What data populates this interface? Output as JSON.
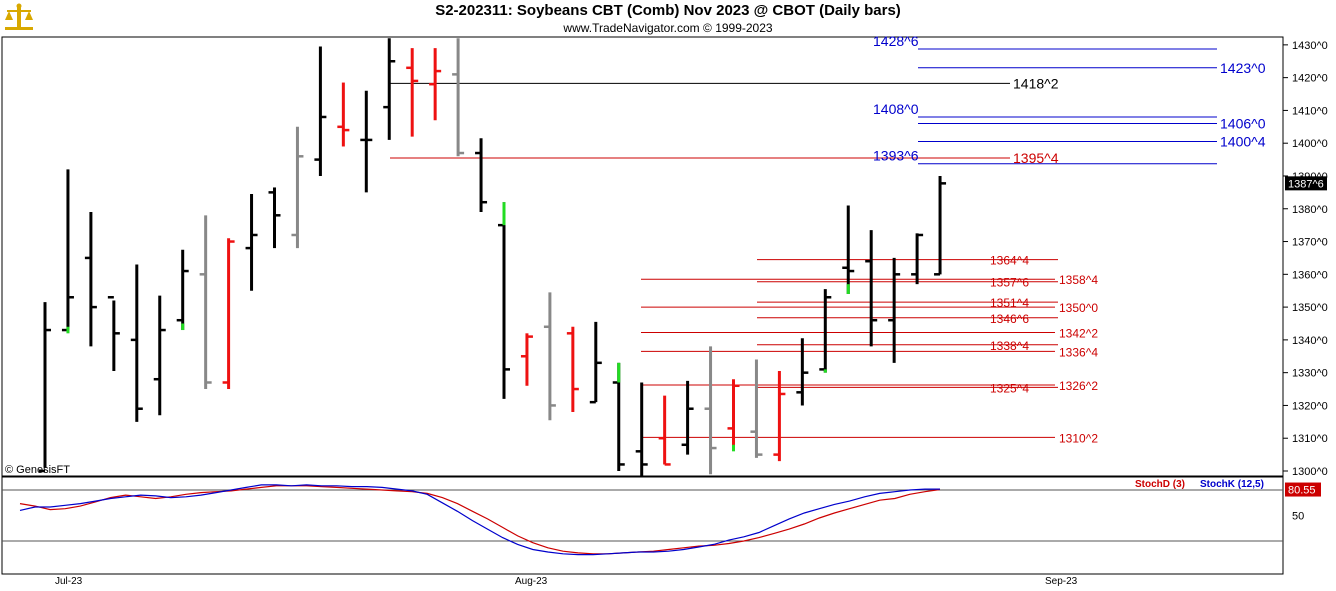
{
  "header": {
    "title": "S2-202311:  Soybeans CBT (Comb) Nov 2023 @ CBOT  (Daily bars)",
    "subtitle": "www.TradeNavigator.com © 1999-2023",
    "watermark": "© GenesisFT"
  },
  "colors": {
    "up": "#000000",
    "down": "#ee1111",
    "neutral": "#888888",
    "signal": "#22dd22",
    "blue": "#0000cc",
    "red": "#cc0000"
  },
  "chart_data": [
    {
      "type": "bar",
      "subtype": "ohlc",
      "ylim": [
        1297,
        1432
      ],
      "yticks": [
        "1300^0",
        "1310^0",
        "1320^0",
        "1330^0",
        "1340^0",
        "1350^0",
        "1360^0",
        "1370^0",
        "1380^0",
        "1390^0",
        "1400^0",
        "1410^0",
        "1420^0",
        "1430^0"
      ],
      "ytick_values": [
        1300,
        1310,
        1320,
        1330,
        1340,
        1350,
        1360,
        1370,
        1380,
        1390,
        1400,
        1410,
        1420,
        1430
      ],
      "xlabels": [
        "Jul-23",
        "Aug-23",
        "Sep-23"
      ],
      "last_price": {
        "label": "1387^6",
        "value": 1387.75
      },
      "bars": [
        {
          "h": 1351.5,
          "l": 1301,
          "o": 1300,
          "c": 1343,
          "color": "black"
        },
        {
          "h": 1392,
          "l": 1343,
          "o": 1343,
          "c": 1353,
          "color": "black"
        },
        {
          "h": 1379,
          "l": 1338,
          "o": 1365,
          "c": 1350,
          "color": "black"
        },
        {
          "h": 1352,
          "l": 1330.5,
          "o": 1353,
          "c": 1342,
          "color": "black"
        },
        {
          "h": 1363,
          "l": 1315,
          "o": 1340,
          "c": 1319,
          "color": "black"
        },
        {
          "h": 1353.5,
          "l": 1317,
          "o": 1328,
          "c": 1343,
          "color": "black"
        },
        {
          "h": 1367.5,
          "l": 1343,
          "o": 1346,
          "c": 1361,
          "color": "black"
        },
        {
          "h": 1378,
          "l": 1325,
          "o": 1360,
          "c": 1327,
          "color": "gray"
        },
        {
          "h": 1371,
          "l": 1325,
          "o": 1327,
          "c": 1370,
          "color": "red"
        },
        {
          "h": 1384.5,
          "l": 1355,
          "o": 1368,
          "c": 1372,
          "color": "black"
        },
        {
          "h": 1386.5,
          "l": 1368,
          "o": 1385,
          "c": 1378,
          "color": "black"
        },
        {
          "h": 1405,
          "l": 1368,
          "o": 1372,
          "c": 1396,
          "color": "gray"
        },
        {
          "h": 1429.5,
          "l": 1390,
          "o": 1395,
          "c": 1408,
          "color": "black"
        },
        {
          "h": 1418.5,
          "l": 1399,
          "o": 1405,
          "c": 1404,
          "color": "red"
        },
        {
          "h": 1416,
          "l": 1385,
          "o": 1401,
          "c": 1401,
          "color": "black"
        },
        {
          "h": 1432,
          "l": 1401,
          "o": 1411,
          "c": 1425,
          "color": "black"
        },
        {
          "h": 1429,
          "l": 1402,
          "o": 1423,
          "c": 1419,
          "color": "red"
        },
        {
          "h": 1429,
          "l": 1407,
          "o": 1418,
          "c": 1422,
          "color": "red"
        },
        {
          "h": 1432,
          "l": 1396,
          "o": 1421,
          "c": 1397,
          "color": "gray"
        },
        {
          "h": 1401.5,
          "l": 1379,
          "o": 1397,
          "c": 1382,
          "color": "black"
        },
        {
          "h": 1382,
          "l": 1322,
          "o": 1375,
          "c": 1331,
          "color": "black"
        },
        {
          "h": 1342,
          "l": 1326,
          "o": 1335,
          "c": 1341,
          "color": "red"
        },
        {
          "h": 1354.5,
          "l": 1315.5,
          "o": 1344,
          "c": 1320,
          "color": "gray"
        },
        {
          "h": 1344,
          "l": 1318,
          "o": 1342,
          "c": 1325,
          "color": "red"
        },
        {
          "h": 1345.5,
          "l": 1321,
          "o": 1321,
          "c": 1333,
          "color": "black"
        },
        {
          "h": 1333,
          "l": 1300,
          "o": 1327,
          "c": 1302,
          "color": "black"
        },
        {
          "h": 1327,
          "l": 1298,
          "o": 1306,
          "c": 1302,
          "color": "black"
        },
        {
          "h": 1323,
          "l": 1302,
          "o": 1310,
          "c": 1302,
          "color": "red"
        },
        {
          "h": 1327.5,
          "l": 1305,
          "o": 1308,
          "c": 1319,
          "color": "black"
        },
        {
          "h": 1338,
          "l": 1299,
          "o": 1319,
          "c": 1307,
          "color": "gray"
        },
        {
          "h": 1328,
          "l": 1307,
          "o": 1313,
          "c": 1326,
          "color": "red"
        },
        {
          "h": 1334,
          "l": 1304,
          "o": 1312,
          "c": 1305,
          "color": "gray"
        },
        {
          "h": 1330.5,
          "l": 1303,
          "o": 1305,
          "c": 1323.5,
          "color": "red"
        },
        {
          "h": 1340.5,
          "l": 1320,
          "o": 1324,
          "c": 1330,
          "color": "black"
        },
        {
          "h": 1355.5,
          "l": 1330,
          "o": 1331,
          "c": 1353,
          "color": "black"
        },
        {
          "h": 1381,
          "l": 1354,
          "o": 1362,
          "c": 1361,
          "color": "black"
        },
        {
          "h": 1373.5,
          "l": 1338,
          "o": 1364,
          "c": 1346,
          "color": "black"
        },
        {
          "h": 1365,
          "l": 1333,
          "o": 1346,
          "c": 1360,
          "color": "black"
        },
        {
          "h": 1372.5,
          "l": 1357,
          "o": 1360,
          "c": 1372,
          "color": "black"
        },
        {
          "h": 1390,
          "l": 1360,
          "o": 1360,
          "c": 1387.75,
          "color": "black"
        }
      ],
      "signals": [
        {
          "bar": 1,
          "from": 1344,
          "to": 1342
        },
        {
          "bar": 6,
          "from": 1345,
          "to": 1343
        },
        {
          "bar": 20,
          "from": 1382,
          "to": 1375
        },
        {
          "bar": 25,
          "from": 1333,
          "to": 1327
        },
        {
          "bar": 30,
          "from": 1308,
          "to": 1306
        },
        {
          "bar": 34,
          "from": 1331,
          "to": 1330
        },
        {
          "bar": 35,
          "from": 1357,
          "to": 1354
        }
      ],
      "levels": [
        {
          "label": "1428^6",
          "value": 1428.75,
          "color": "blue",
          "side": "left"
        },
        {
          "label": "1423^0",
          "value": 1423,
          "color": "blue",
          "side": "right"
        },
        {
          "label": "1418^2",
          "value": 1418.25,
          "color": "black",
          "side": "right"
        },
        {
          "label": "1408^0",
          "value": 1408,
          "color": "blue",
          "side": "left"
        },
        {
          "label": "1406^0",
          "value": 1406,
          "color": "blue",
          "side": "right"
        },
        {
          "label": "1400^4",
          "value": 1400.5,
          "color": "blue",
          "side": "right"
        },
        {
          "label": "1395^4",
          "value": 1395.5,
          "color": "red",
          "side": "right"
        },
        {
          "label": "1393^6",
          "value": 1393.75,
          "color": "blue",
          "side": "left"
        },
        {
          "label": "1364^4",
          "value": 1364.5,
          "color": "red",
          "side": "mid"
        },
        {
          "label": "1358^4",
          "value": 1358.5,
          "color": "red",
          "side": "right"
        },
        {
          "label": "1357^6",
          "value": 1357.75,
          "color": "red",
          "side": "mid"
        },
        {
          "label": "1351^4",
          "value": 1351.5,
          "color": "red",
          "side": "mid"
        },
        {
          "label": "1350^0",
          "value": 1350,
          "color": "red",
          "side": "right"
        },
        {
          "label": "1346^6",
          "value": 1346.75,
          "color": "red",
          "side": "mid"
        },
        {
          "label": "1342^2",
          "value": 1342.25,
          "color": "red",
          "side": "right"
        },
        {
          "label": "1338^4",
          "value": 1338.5,
          "color": "red",
          "side": "mid"
        },
        {
          "label": "1336^4",
          "value": 1336.5,
          "color": "red",
          "side": "right"
        },
        {
          "label": "1326^2",
          "value": 1326.25,
          "color": "red",
          "side": "right"
        },
        {
          "label": "1325^4",
          "value": 1325.5,
          "color": "red",
          "side": "mid"
        },
        {
          "label": "1310^2",
          "value": 1310.25,
          "color": "red",
          "side": "right"
        }
      ]
    },
    {
      "type": "line",
      "subtype": "stochastic",
      "ylim": [
        0,
        100
      ],
      "yticks": [
        "50"
      ],
      "ytick_values": [
        50
      ],
      "reference_lines": [
        80,
        20
      ],
      "last_value": {
        "label": "80.55",
        "value": 80.55
      },
      "legend": [
        "StochD (3)",
        "StochK (12,5)"
      ],
      "series": [
        {
          "name": "StochD (3)",
          "color": "red",
          "values": [
            64,
            61,
            57,
            58,
            61,
            66,
            71,
            74,
            72,
            70,
            72,
            75,
            77,
            78,
            79,
            81,
            83,
            85,
            85,
            85,
            84,
            83,
            82,
            81,
            80,
            79,
            78,
            76,
            71,
            64,
            55,
            46,
            36,
            26,
            18,
            12,
            8,
            6,
            5,
            5,
            6,
            7,
            8,
            10,
            12,
            14,
            15,
            17,
            20,
            24,
            29,
            34,
            40,
            47,
            53,
            58,
            63,
            68,
            70,
            75,
            78,
            80.55
          ]
        },
        {
          "name": "StochK (12,5)",
          "color": "blue",
          "values": [
            56,
            60,
            60,
            62,
            64,
            67,
            70,
            72,
            74,
            73,
            71,
            72,
            74,
            77,
            80,
            83,
            86,
            86,
            85,
            86,
            85,
            85,
            84,
            84,
            83,
            81,
            79,
            75,
            65,
            55,
            44,
            34,
            24,
            16,
            10,
            7,
            5,
            4,
            4,
            5,
            6,
            7,
            7,
            8,
            10,
            13,
            16,
            21,
            25,
            30,
            38,
            46,
            53,
            58,
            63,
            67,
            72,
            76,
            78,
            80,
            81,
            81
          ]
        }
      ]
    }
  ]
}
